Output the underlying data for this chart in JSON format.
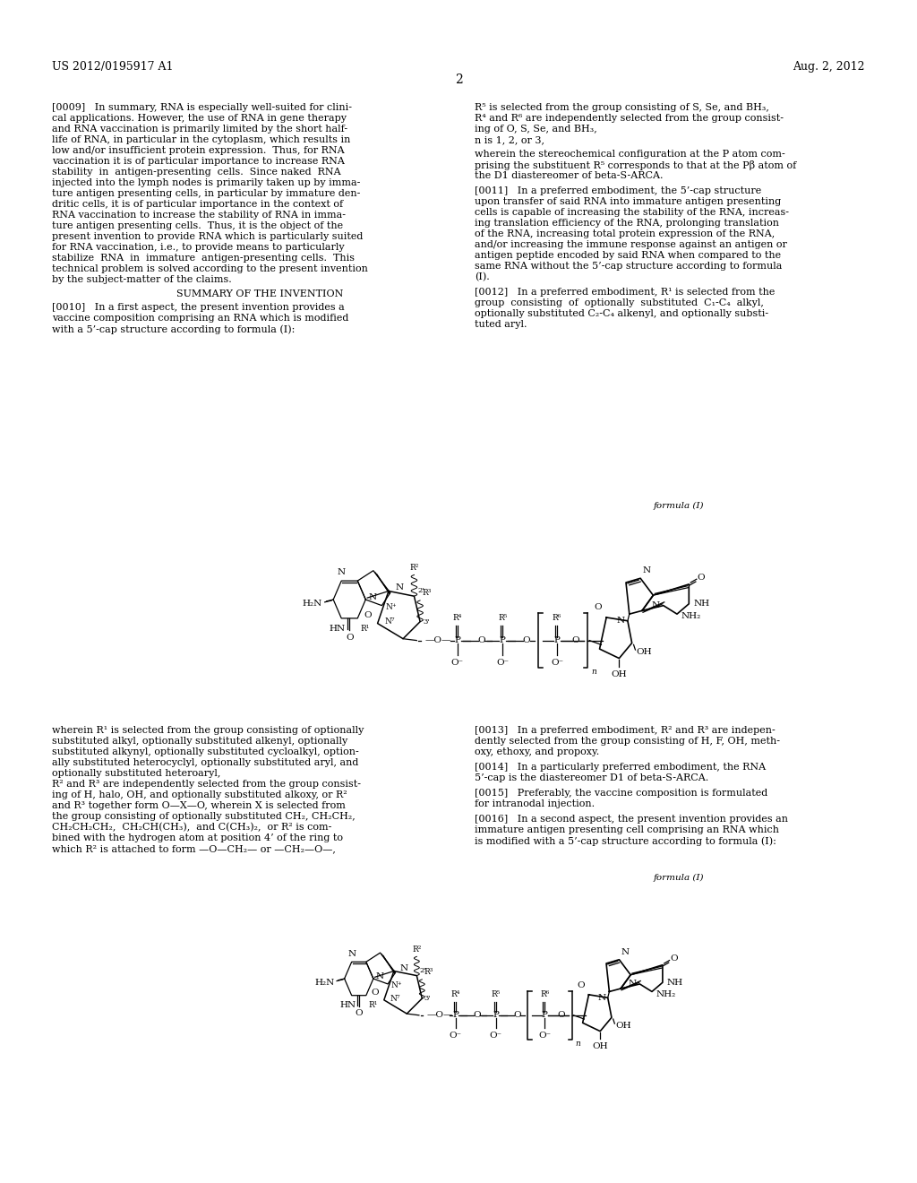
{
  "header_left": "US 2012/0195917 A1",
  "header_right": "Aug. 2, 2012",
  "page_number": "2",
  "background_color": "#ffffff",
  "p9_lines": [
    "[0009]   In summary, RNA is especially well-suited for clini-",
    "cal applications. However, the use of RNA in gene therapy",
    "and RNA vaccination is primarily limited by the short half-",
    "life of RNA, in particular in the cytoplasm, which results in",
    "low and/or insufficient protein expression.  Thus, for RNA",
    "vaccination it is of particular importance to increase RNA",
    "stability  in  antigen-presenting  cells.  Since naked  RNA",
    "injected into the lymph nodes is primarily taken up by imma-",
    "ture antigen presenting cells, in particular by immature den-",
    "dritic cells, it is of particular importance in the context of",
    "RNA vaccination to increase the stability of RNA in imma-",
    "ture antigen presenting cells.  Thus, it is the object of the",
    "present invention to provide RNA which is particularly suited",
    "for RNA vaccination, i.e., to provide means to particularly",
    "stabilize  RNA  in  immature  antigen-presenting cells.  This",
    "technical problem is solved according to the present invention",
    "by the subject-matter of the claims."
  ],
  "summary_heading": "SUMMARY OF THE INVENTION",
  "p10_lines": [
    "[0010]   In a first aspect, the present invention provides a",
    "vaccine composition comprising an RNA which is modified",
    "with a 5’-cap structure according to formula (I):"
  ],
  "r_col_top_lines": [
    "R⁵ is selected from the group consisting of S, Se, and BH₃,",
    "R⁴ and R⁶ are independently selected from the group consist-",
    "ing of O, S, Se, and BH₃,",
    "n is 1, 2, or 3,"
  ],
  "r_stereo_lines": [
    "wherein the stereochemical configuration at the P atom com-",
    "prising the substituent R⁵ corresponds to that at the Pβ atom of",
    "the D1 diastereomer of beta-S-ARCA."
  ],
  "p11_lines": [
    "[0011]   In a preferred embodiment, the 5’-cap structure",
    "upon transfer of said RNA into immature antigen presenting",
    "cells is capable of increasing the stability of the RNA, increas-",
    "ing translation efficiency of the RNA, prolonging translation",
    "of the RNA, increasing total protein expression of the RNA,",
    "and/or increasing the immune response against an antigen or",
    "antigen peptide encoded by said RNA when compared to the",
    "same RNA without the 5’-cap structure according to formula",
    "(I)."
  ],
  "p12_lines": [
    "[0012]   In a preferred embodiment, R¹ is selected from the",
    "group  consisting  of  optionally  substituted  C₁-C₄  alkyl,",
    "optionally substituted C₂-C₄ alkenyl, and optionally substi-",
    "tuted aryl."
  ],
  "p_r1_lines": [
    "wherein R¹ is selected from the group consisting of optionally",
    "substituted alkyl, optionally substituted alkenyl, optionally",
    "substituted alkynyl, optionally substituted cycloalkyl, option-",
    "ally substituted heterocyclyl, optionally substituted aryl, and",
    "optionally substituted heteroaryl,",
    "R² and R³ are independently selected from the group consist-",
    "ing of H, halo, OH, and optionally substituted alkoxy, or R²",
    "and R³ together form O—X—O, wherein X is selected from",
    "the group consisting of optionally substituted CH₂, CH₂CH₂,",
    "CH₂CH₂CH₂,  CH₂CH(CH₃),  and C(CH₃)₂,  or R² is com-",
    "bined with the hydrogen atom at position 4’ of the ring to",
    "which R² is attached to form —O—CH₂— or —CH₂—O—,"
  ],
  "p13_lines": [
    "[0013]   In a preferred embodiment, R² and R³ are indepen-",
    "dently selected from the group consisting of H, F, OH, meth-",
    "oxy, ethoxy, and propoxy."
  ],
  "p14_lines": [
    "[0014]   In a particularly preferred embodiment, the RNA",
    "5’-cap is the diastereomer D1 of beta-S-ARCA."
  ],
  "p15_lines": [
    "[0015]   Preferably, the vaccine composition is formulated",
    "for intranodal injection."
  ],
  "p16_lines": [
    "[0016]   In a second aspect, the present invention provides an",
    "immature antigen presenting cell comprising an RNA which",
    "is modified with a 5’-cap structure according to formula (I):"
  ],
  "formula_label": "formula (I)"
}
